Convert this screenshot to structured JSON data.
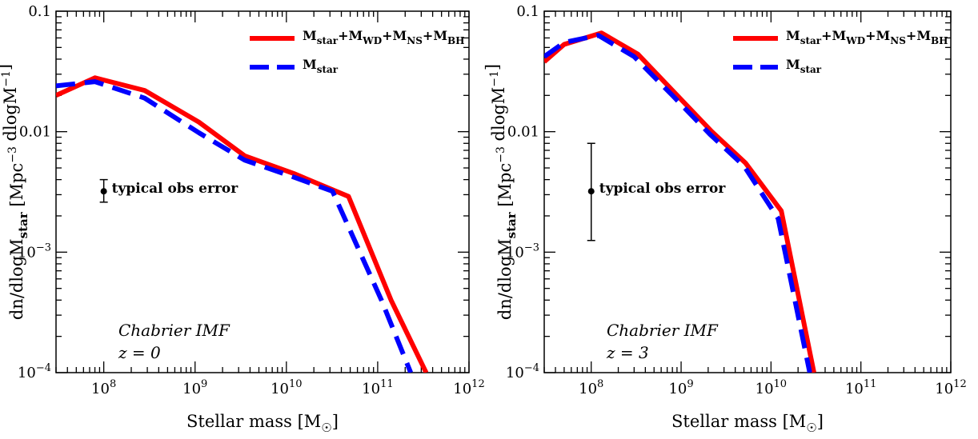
{
  "colors": {
    "series_total": "#ff0000",
    "series_star": "#0000ff",
    "axis": "#000000"
  },
  "chart_data": [
    {
      "type": "line",
      "xscale": "log",
      "yscale": "log",
      "xlim": [
        30000000.0,
        1000000000000.0
      ],
      "ylim": [
        0.0001,
        0.1
      ],
      "xlabel": "Stellar mass [M☉]",
      "ylabel": "dn/dlogMstar [Mpc⁻³ dlogM⁻¹]",
      "x_ticks": [
        100000000.0,
        1000000000.0,
        10000000000.0,
        100000000000.0,
        1000000000000.0
      ],
      "x_tick_labels": [
        "10⁸",
        "10⁹",
        "10¹⁰",
        "10¹¹",
        "10¹²"
      ],
      "y_ticks": [
        0.0001,
        0.001,
        0.01,
        0.1
      ],
      "y_tick_labels": [
        "10⁻⁴",
        "10⁻³",
        "0.01",
        "0.1"
      ],
      "legend_position": "top-right",
      "annotation_text": "typical obs error",
      "imf_label": "Chabrier IMF",
      "z_label": "z = 0",
      "error_bar": {
        "x": 100000000.0,
        "y": 0.0032,
        "y_low": 0.0026,
        "y_high": 0.004
      },
      "series": [
        {
          "name": "Mstar+MWD+MNS+MBH",
          "style": "solid",
          "points": [
            [
              30000000.0,
              0.02
            ],
            [
              80000000.0,
              0.028
            ],
            [
              280000000.0,
              0.022
            ],
            [
              1100000000.0,
              0.012
            ],
            [
              3500000000.0,
              0.0063
            ],
            [
              12000000000.0,
              0.0045
            ],
            [
              48000000000.0,
              0.0029
            ],
            [
              140000000000.0,
              0.0004
            ],
            [
              340000000000.0,
              0.0001
            ]
          ]
        },
        {
          "name": "Mstar",
          "style": "dashed",
          "points": [
            [
              30000000.0,
              0.024
            ],
            [
              80000000.0,
              0.026
            ],
            [
              280000000.0,
              0.019
            ],
            [
              1100000000.0,
              0.0098
            ],
            [
              3500000000.0,
              0.0058
            ],
            [
              12000000000.0,
              0.0042
            ],
            [
              32000000000.0,
              0.0032
            ],
            [
              110000000000.0,
              0.0004
            ],
            [
              230000000000.0,
              0.0001
            ]
          ]
        }
      ]
    },
    {
      "type": "line",
      "xscale": "log",
      "yscale": "log",
      "xlim": [
        30000000.0,
        1000000000000.0
      ],
      "ylim": [
        0.0001,
        0.1
      ],
      "xlabel": "Stellar mass [M☉]",
      "ylabel": "dn/dlogMstar [Mpc⁻³ dlogM⁻¹]",
      "x_ticks": [
        100000000.0,
        1000000000.0,
        10000000000.0,
        100000000000.0,
        1000000000000.0
      ],
      "x_tick_labels": [
        "10⁸",
        "10⁹",
        "10¹⁰",
        "10¹¹",
        "10¹²"
      ],
      "y_ticks": [
        0.0001,
        0.001,
        0.01,
        0.1
      ],
      "y_tick_labels": [
        "10⁻⁴",
        "10⁻³",
        "0.01",
        "0.1"
      ],
      "legend_position": "top-right",
      "annotation_text": "typical obs error",
      "imf_label": "Chabrier IMF",
      "z_label": "z = 3",
      "error_bar": {
        "x": 100000000.0,
        "y": 0.0032,
        "y_low": 0.00125,
        "y_high": 0.008
      },
      "series": [
        {
          "name": "Mstar+MWD+MNS+MBH",
          "style": "solid",
          "points": [
            [
              30000000.0,
              0.038
            ],
            [
              50000000.0,
              0.053
            ],
            [
              130000000.0,
              0.066
            ],
            [
              330000000.0,
              0.044
            ],
            [
              850000000.0,
              0.021
            ],
            [
              2200000000.0,
              0.01
            ],
            [
              5200000000.0,
              0.0055
            ],
            [
              13000000000.0,
              0.0022
            ],
            [
              30000000000.0,
              0.0001
            ]
          ]
        },
        {
          "name": "Mstar",
          "style": "dashed",
          "points": [
            [
              30000000.0,
              0.042
            ],
            [
              50000000.0,
              0.055
            ],
            [
              120000000.0,
              0.063
            ],
            [
              300000000.0,
              0.042
            ],
            [
              800000000.0,
              0.02
            ],
            [
              2100000000.0,
              0.0095
            ],
            [
              5000000000.0,
              0.0052
            ],
            [
              12000000000.0,
              0.0019
            ],
            [
              27000000000.0,
              0.0001
            ]
          ]
        }
      ]
    }
  ]
}
